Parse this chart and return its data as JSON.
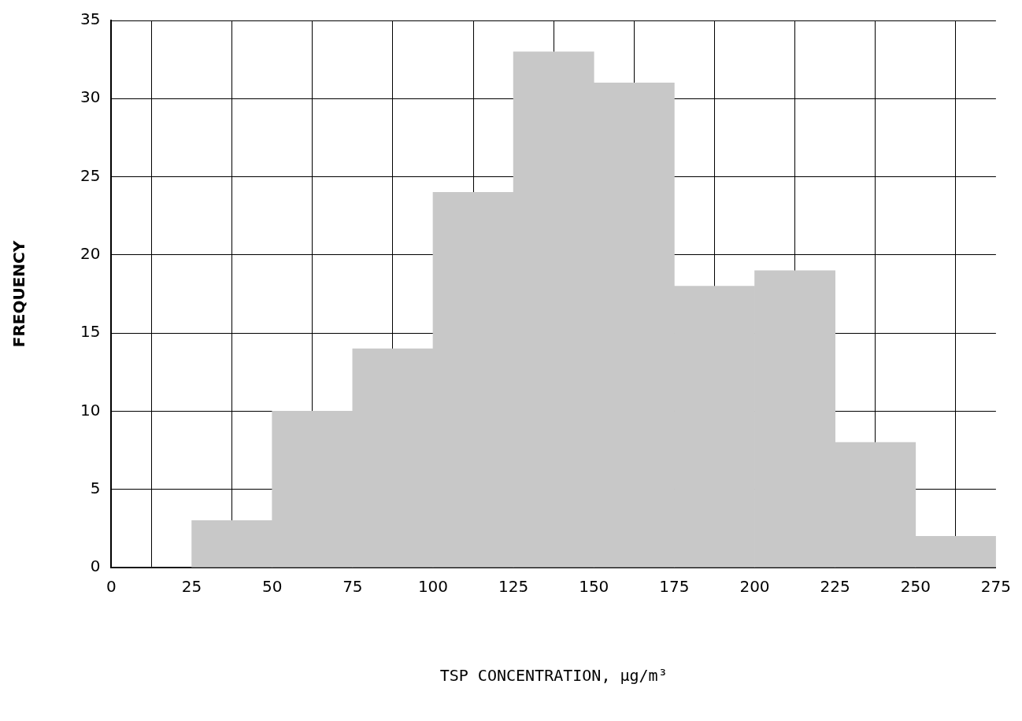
{
  "chart_data": {
    "type": "histogram",
    "bins": [
      0,
      25,
      50,
      75,
      100,
      125,
      150,
      175,
      200,
      225,
      250,
      275
    ],
    "values": [
      0,
      3,
      10,
      14,
      24,
      33,
      31,
      18,
      19,
      8,
      2
    ],
    "color": "#c8c8c8",
    "xlabel": "TSP CONCENTRATION, μg/m³",
    "ylabel": "FREQUENCY",
    "xlim": [
      0,
      275
    ],
    "xticks": [
      0,
      25,
      50,
      75,
      100,
      125,
      150,
      175,
      200,
      225,
      250,
      275
    ],
    "ylim": [
      0,
      35
    ],
    "yticks": [
      0,
      5,
      10,
      15,
      20,
      25,
      30,
      35
    ],
    "grid": true,
    "legend": false
  }
}
